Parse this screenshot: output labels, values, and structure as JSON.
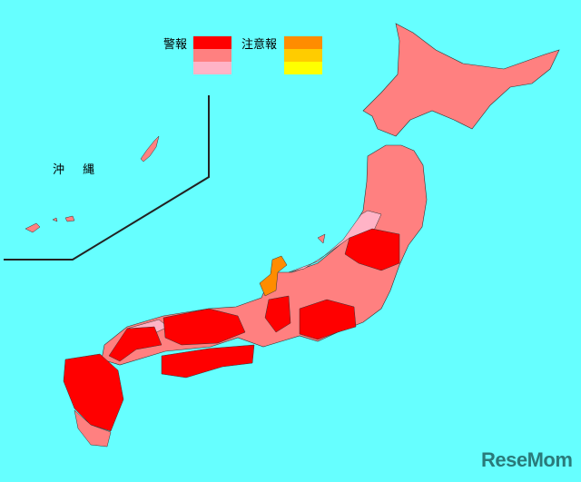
{
  "legend": {
    "warning_label": "警報",
    "advisory_label": "注意報",
    "warning_colors": [
      "#ff0000",
      "#ff8080",
      "#ffb3c6"
    ],
    "advisory_colors": [
      "#ff8c00",
      "#ffcc00",
      "#ffff00"
    ]
  },
  "inset_label": "沖 縄",
  "colors": {
    "sea": "#66ffff",
    "border": "#333333"
  },
  "watermark": "ReseMom"
}
